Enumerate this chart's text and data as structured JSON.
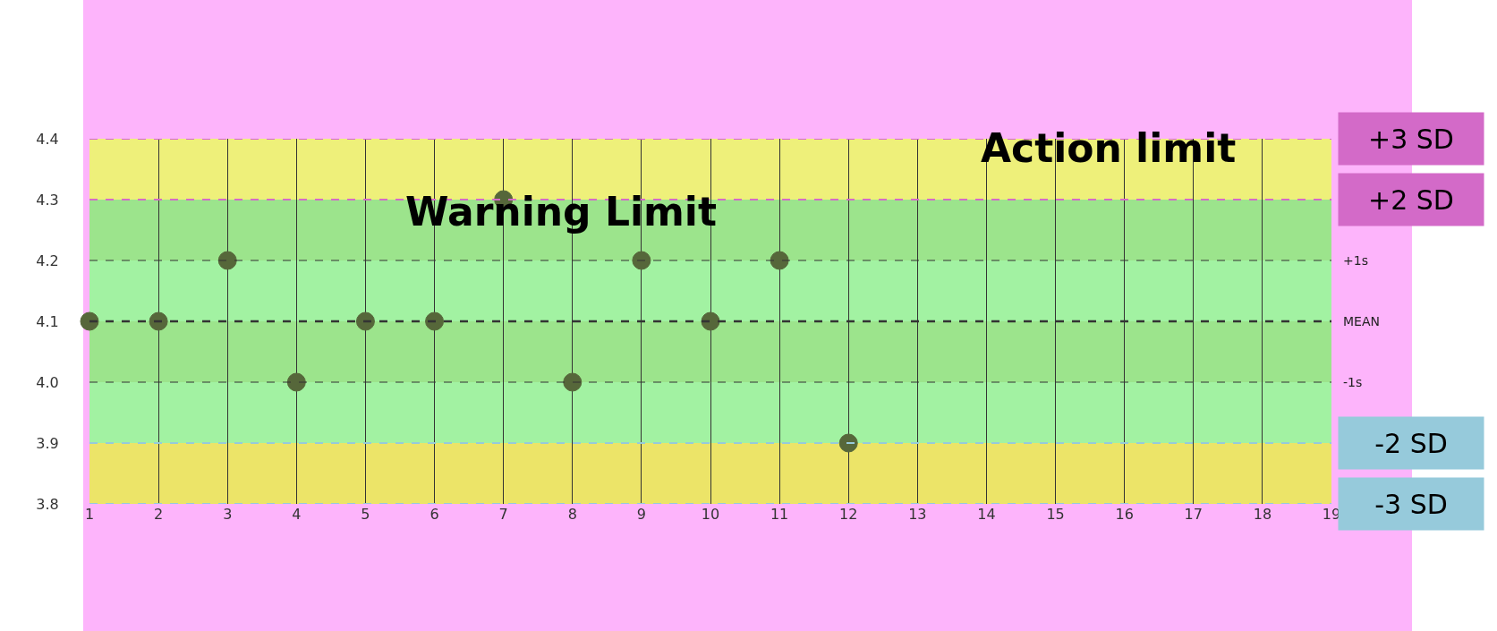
{
  "chart_data": {
    "type": "scatter",
    "x": [
      1,
      2,
      3,
      4,
      5,
      6,
      7,
      8,
      9,
      10,
      11,
      12
    ],
    "values": [
      4.1,
      4.1,
      4.2,
      4.0,
      4.1,
      4.1,
      4.3,
      4.0,
      4.2,
      4.1,
      4.2,
      3.9
    ],
    "color": "#56673a",
    "marker": "circle",
    "xlim": [
      1,
      19
    ],
    "xticks": [
      1,
      2,
      3,
      4,
      5,
      6,
      7,
      8,
      9,
      10,
      11,
      12,
      13,
      14,
      15,
      16,
      17,
      18,
      19
    ],
    "ylim": [
      3.8,
      4.4
    ],
    "yticks": [
      3.8,
      3.9,
      {
        "value": 4,
        "label": "4.0"
      },
      4.1,
      4.2,
      4.3,
      4.4
    ],
    "grid": true,
    "bands": [
      {
        "axis": "y",
        "from": 4.3,
        "to": 4.4,
        "color": "#eef07a"
      },
      {
        "axis": "y",
        "from": 4.2,
        "to": 4.3,
        "color": "#9ce48c"
      },
      {
        "axis": "y",
        "from": 4.1,
        "to": 4.2,
        "color": "#a2f2a2"
      },
      {
        "axis": "y",
        "from": 4.0,
        "to": 4.1,
        "color": "#9ce48c"
      },
      {
        "axis": "y",
        "from": 3.9,
        "to": 4.0,
        "color": "#a2f2a2"
      },
      {
        "axis": "y",
        "from": 3.8,
        "to": 3.9,
        "color": "#ece468"
      }
    ],
    "ref_lines": [
      {
        "axis": "y",
        "value": 4.4,
        "label": "+3 SD",
        "color": "#d36ac8",
        "line_style": "dashed"
      },
      {
        "axis": "y",
        "value": 4.3,
        "label": "+2 SD",
        "color": "#d36ac8",
        "line_style": "dashed"
      },
      {
        "axis": "y",
        "value": 4.2,
        "label": "+1s",
        "line_style": "dashed"
      },
      {
        "axis": "y",
        "value": 4.1,
        "label": "MEAN",
        "line_style": "dashed"
      },
      {
        "axis": "y",
        "value": 4.0,
        "label": "-1s",
        "line_style": "dashed"
      },
      {
        "axis": "y",
        "value": 3.9,
        "label": "-2 SD",
        "color": "#96cadb",
        "line_style": "dashed"
      },
      {
        "axis": "y",
        "value": 3.8,
        "label": "-3 SD",
        "color": "#96cadb",
        "line_style": "dashed"
      }
    ],
    "annotations": [
      "Action limit",
      "Warning Limit"
    ]
  }
}
